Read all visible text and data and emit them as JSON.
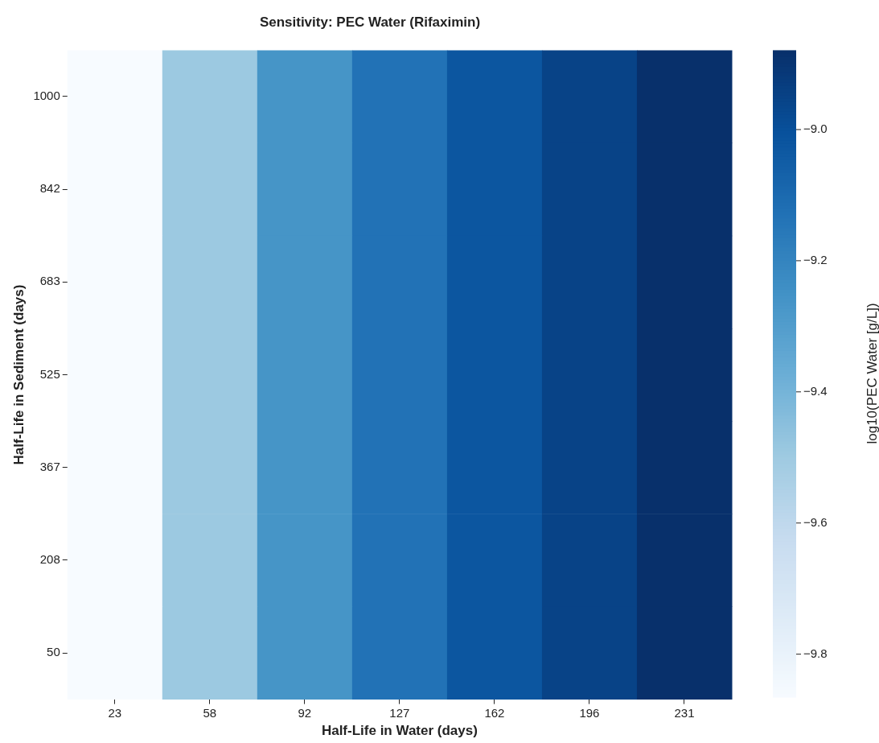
{
  "chart_data": {
    "type": "heatmap",
    "title": "Sensitivity: PEC Water (Rifaximin)",
    "xlabel": "Half-Life in Water (days)",
    "ylabel": "Half-Life in Sediment (days)",
    "clabel": "log10(PEC Water [g/L])",
    "categories": [
      "23",
      "58",
      "92",
      "127",
      "162",
      "196",
      "231"
    ],
    "y_categories": [
      "1000",
      "842",
      "683",
      "525",
      "367",
      "208",
      "50"
    ],
    "cells": [
      [
        -9.865,
        -9.49,
        -9.26,
        -9.13,
        -9.02,
        -8.95,
        -8.88
      ],
      [
        -9.865,
        -9.49,
        -9.26,
        -9.13,
        -9.02,
        -8.95,
        -8.88
      ],
      [
        -9.865,
        -9.49,
        -9.26,
        -9.13,
        -9.02,
        -8.95,
        -8.88
      ],
      [
        -9.865,
        -9.49,
        -9.26,
        -9.13,
        -9.02,
        -8.95,
        -8.88
      ],
      [
        -9.865,
        -9.49,
        -9.26,
        -9.13,
        -9.02,
        -8.95,
        -8.88
      ],
      [
        -9.865,
        -9.49,
        -9.26,
        -9.13,
        -9.02,
        -8.95,
        -8.88
      ],
      [
        -9.865,
        -9.49,
        -9.26,
        -9.13,
        -9.02,
        -8.95,
        -8.88
      ]
    ],
    "clim": [
      -9.865,
      -8.879
    ],
    "cticks": [
      {
        "value": -9.8,
        "label": "−9.8"
      },
      {
        "value": -9.6,
        "label": "−9.6"
      },
      {
        "value": -9.4,
        "label": "−9.4"
      },
      {
        "value": -9.2,
        "label": "−9.2"
      },
      {
        "value": -9.0,
        "label": "−9.0"
      }
    ]
  }
}
